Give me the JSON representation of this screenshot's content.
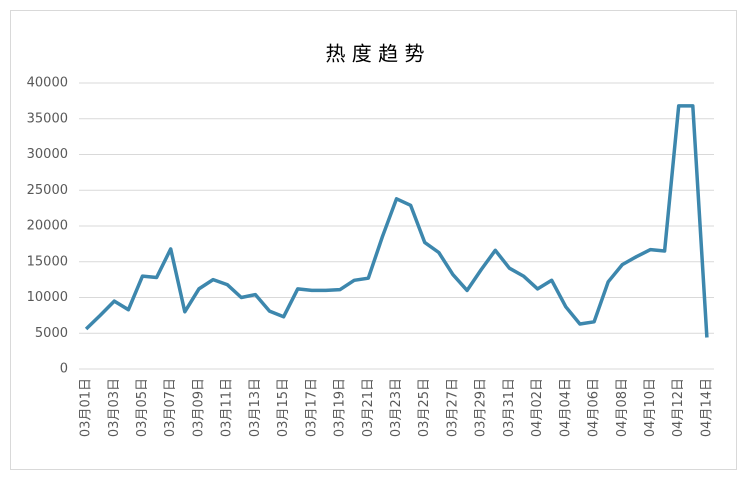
{
  "chart_data": {
    "type": "line",
    "title": "热 度 趋 势",
    "categories": [
      "03月01日",
      null,
      "03月03日",
      null,
      "03月05日",
      null,
      "03月07日",
      null,
      "03月09日",
      null,
      "03月11日",
      null,
      "03月13日",
      null,
      "03月15日",
      null,
      "03月17日",
      null,
      "03月19日",
      null,
      "03月21日",
      null,
      "03月23日",
      null,
      "03月25日",
      null,
      "03月27日",
      null,
      "03月29日",
      null,
      "03月31日",
      null,
      "04月02日",
      null,
      "04月04日",
      null,
      "04月06日",
      null,
      "04月08日",
      null,
      "04月10日",
      null,
      "04月12日",
      null,
      "04月14日"
    ],
    "series": [
      {
        "color": "#3d87ad",
        "values": [
          5600,
          7500,
          9500,
          8300,
          13000,
          12800,
          16800,
          8000,
          11200,
          12500,
          11800,
          10000,
          10400,
          8100,
          7300,
          11200,
          11000,
          11000,
          11100,
          12400,
          12700,
          18500,
          23800,
          22900,
          17700,
          16300,
          13200,
          11000,
          13900,
          16600,
          14100,
          13000,
          11200,
          12400,
          8700,
          6300,
          6600,
          12200,
          14600,
          15700,
          16700,
          16500,
          36800,
          36800,
          4400
        ]
      }
    ],
    "ylim": [
      0,
      40000
    ],
    "yticks": [
      0,
      5000,
      10000,
      15000,
      20000,
      25000,
      30000,
      35000,
      40000
    ],
    "grid": true
  }
}
